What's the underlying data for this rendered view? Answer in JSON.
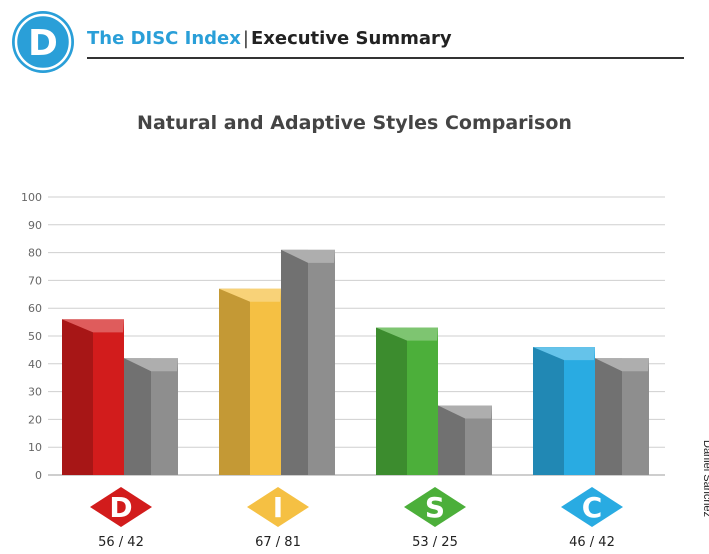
{
  "header": {
    "logo_letter": "D",
    "brand": "The DISC Index",
    "separator": "|",
    "section": "Executive Summary"
  },
  "side_label": "Daniel Sanchez",
  "colors": {
    "brand": "#2a9fd8",
    "D": "#d21c1c",
    "I": "#f5c043",
    "S": "#4caf3a",
    "C": "#29abe2",
    "adaptive": "#8e8e8e"
  },
  "chart_data": {
    "type": "bar",
    "title": "Natural and Adaptive Styles Comparison",
    "categories": [
      "D",
      "I",
      "S",
      "C"
    ],
    "series": [
      {
        "values": [
          56,
          67,
          53,
          46
        ]
      },
      {
        "values": [
          42,
          81,
          25,
          42
        ]
      }
    ],
    "value_labels": [
      "56 / 42",
      "67 / 81",
      "53 / 25",
      "46 / 42"
    ],
    "ylim": [
      0,
      100
    ],
    "yticks": [
      0,
      10,
      20,
      30,
      40,
      50,
      60,
      70,
      80,
      90,
      100
    ],
    "grid": true,
    "xlabel": "",
    "ylabel": ""
  }
}
